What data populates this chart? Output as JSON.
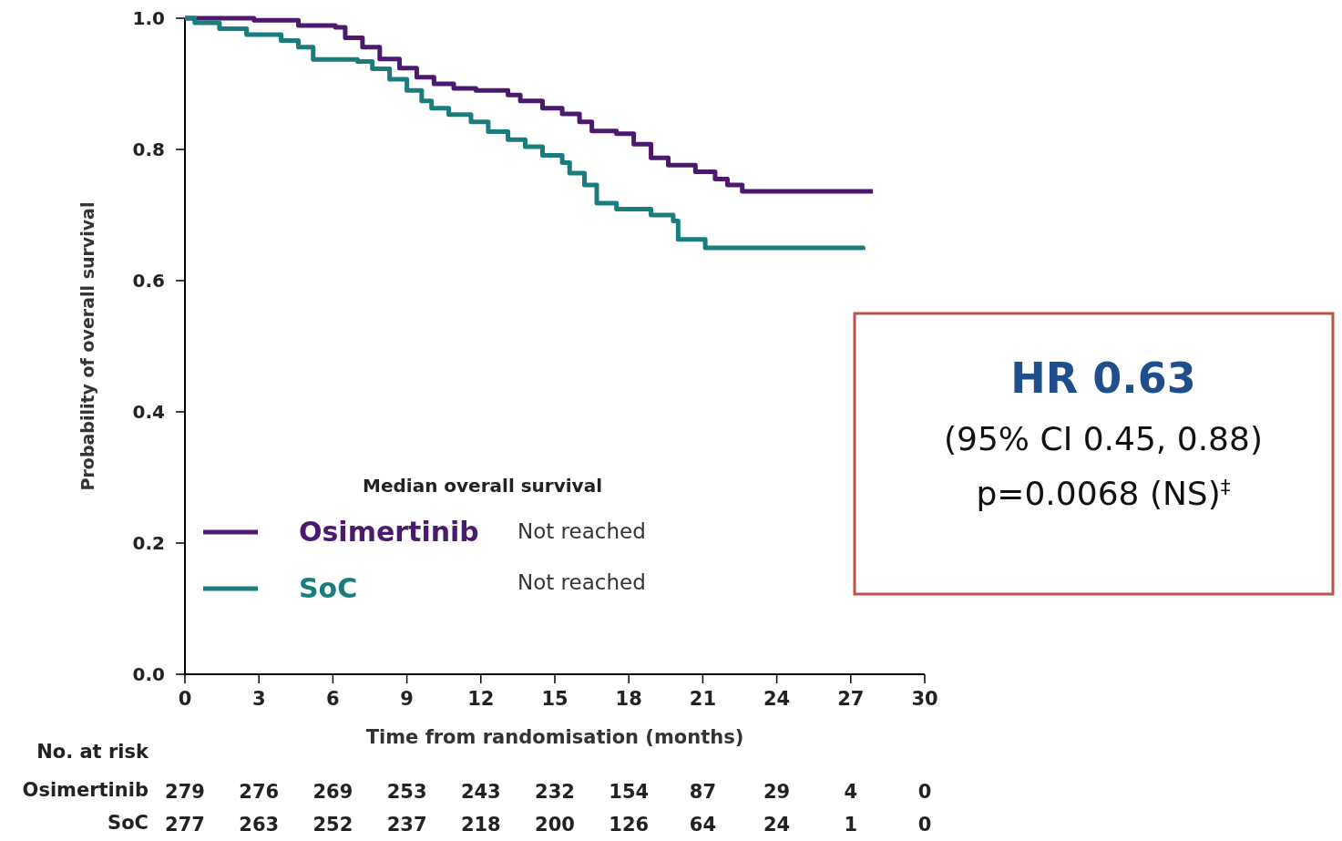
{
  "chart_data": {
    "type": "step",
    "xlabel": "Time from randomisation (months)",
    "ylabel": "Probability of overall survival",
    "legend_title": "Median overall survival",
    "legend": "bottom left",
    "xlim": [
      0,
      30
    ],
    "xticks": [
      0,
      3,
      6,
      9,
      12,
      15,
      18,
      21,
      24,
      27,
      30
    ],
    "ylim": [
      0,
      1
    ],
    "yticks": [
      {
        "value": 0,
        "label": "0.0"
      },
      0.2,
      0.4,
      0.6,
      0.8,
      {
        "value": 1,
        "label": "1.0"
      }
    ],
    "series": [
      {
        "name": "Osimertinib",
        "color": "#4b1a6e",
        "x": [
          0,
          2.8,
          4.6,
          6.1,
          6.5,
          7.2,
          7.9,
          8.7,
          9.4,
          10.1,
          10.9,
          11.8,
          13.1,
          13.6,
          14.5,
          15.3,
          16.0,
          16.5,
          17.5,
          18.2,
          18.9,
          19.6,
          20.7,
          21.5,
          22.0,
          22.6,
          27.9
        ],
        "values": [
          1.0,
          0.997,
          0.989,
          0.986,
          0.97,
          0.956,
          0.938,
          0.924,
          0.91,
          0.9,
          0.893,
          0.89,
          0.883,
          0.874,
          0.863,
          0.854,
          0.842,
          0.828,
          0.824,
          0.808,
          0.787,
          0.776,
          0.766,
          0.755,
          0.746,
          0.736,
          0.736
        ]
      },
      {
        "name": "SoC",
        "color": "#1a7d7d",
        "x": [
          0,
          0.4,
          1.4,
          2.5,
          3.9,
          4.6,
          5.2,
          7.0,
          7.6,
          8.3,
          9.0,
          9.6,
          10.0,
          10.7,
          11.6,
          12.3,
          13.1,
          13.8,
          14.5,
          15.3,
          15.6,
          16.2,
          16.7,
          17.5,
          18.9,
          19.8,
          20.0,
          21.1,
          27.5
        ],
        "values": [
          1.0,
          0.993,
          0.984,
          0.975,
          0.966,
          0.956,
          0.937,
          0.934,
          0.923,
          0.907,
          0.89,
          0.874,
          0.863,
          0.853,
          0.842,
          0.827,
          0.815,
          0.804,
          0.791,
          0.78,
          0.764,
          0.746,
          0.718,
          0.709,
          0.7,
          0.691,
          0.663,
          0.65,
          0.647
        ]
      }
    ],
    "annotations": [
      "Not reached",
      "Not reached",
      "HR 0.63",
      "(95% CI 0.45, 0.88)",
      "p=0.0068 (NS)$^{‡}$",
      "No. at risk",
      "Osimertinib",
      "279",
      "276",
      "269",
      "253",
      "243",
      "232",
      "154",
      "87",
      "29",
      "4",
      "0",
      "SoC",
      "277",
      "263",
      "252",
      "237",
      "218",
      "200",
      "126",
      "64",
      "24",
      "1",
      "0"
    ]
  }
}
